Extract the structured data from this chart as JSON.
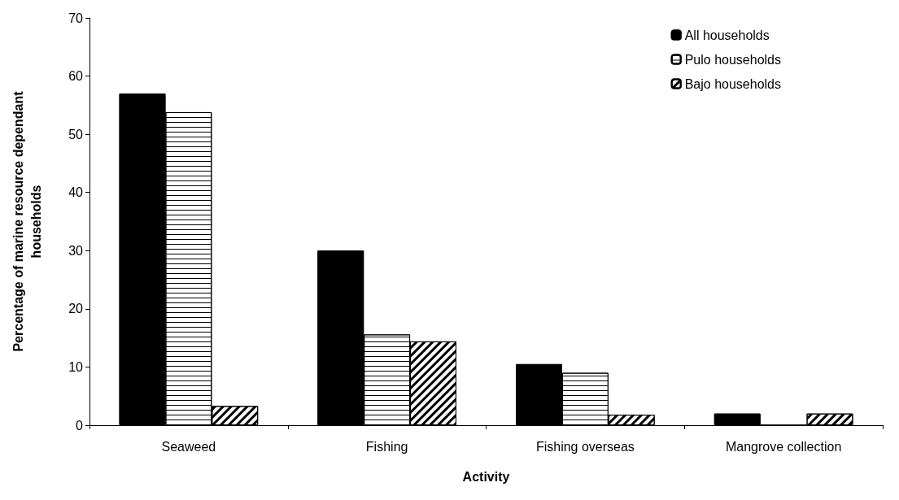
{
  "chart_data": {
    "type": "bar",
    "xlabel": "Activity",
    "ylabel": "Percentage of marine resource dependant\nhouseholds",
    "categories": [
      "Seaweed",
      "Fishing",
      "Fishing overseas",
      "Mangrove collection"
    ],
    "series": [
      {
        "name": "All households",
        "color": "#000000",
        "values": [
          57,
          30,
          10.5,
          2
        ]
      },
      {
        "name": "Pulo households",
        "color": "#ffffff",
        "values": [
          53.8,
          15.6,
          9,
          0
        ]
      },
      {
        "name": "Bajo households",
        "color": "#ffffff",
        "values": [
          3.3,
          14.4,
          1.8,
          2
        ]
      }
    ],
    "ylim": [
      0,
      70
    ],
    "yticks": [
      0,
      10,
      20,
      30,
      40,
      50,
      60,
      70
    ],
    "grid": false,
    "legend": "top right"
  }
}
